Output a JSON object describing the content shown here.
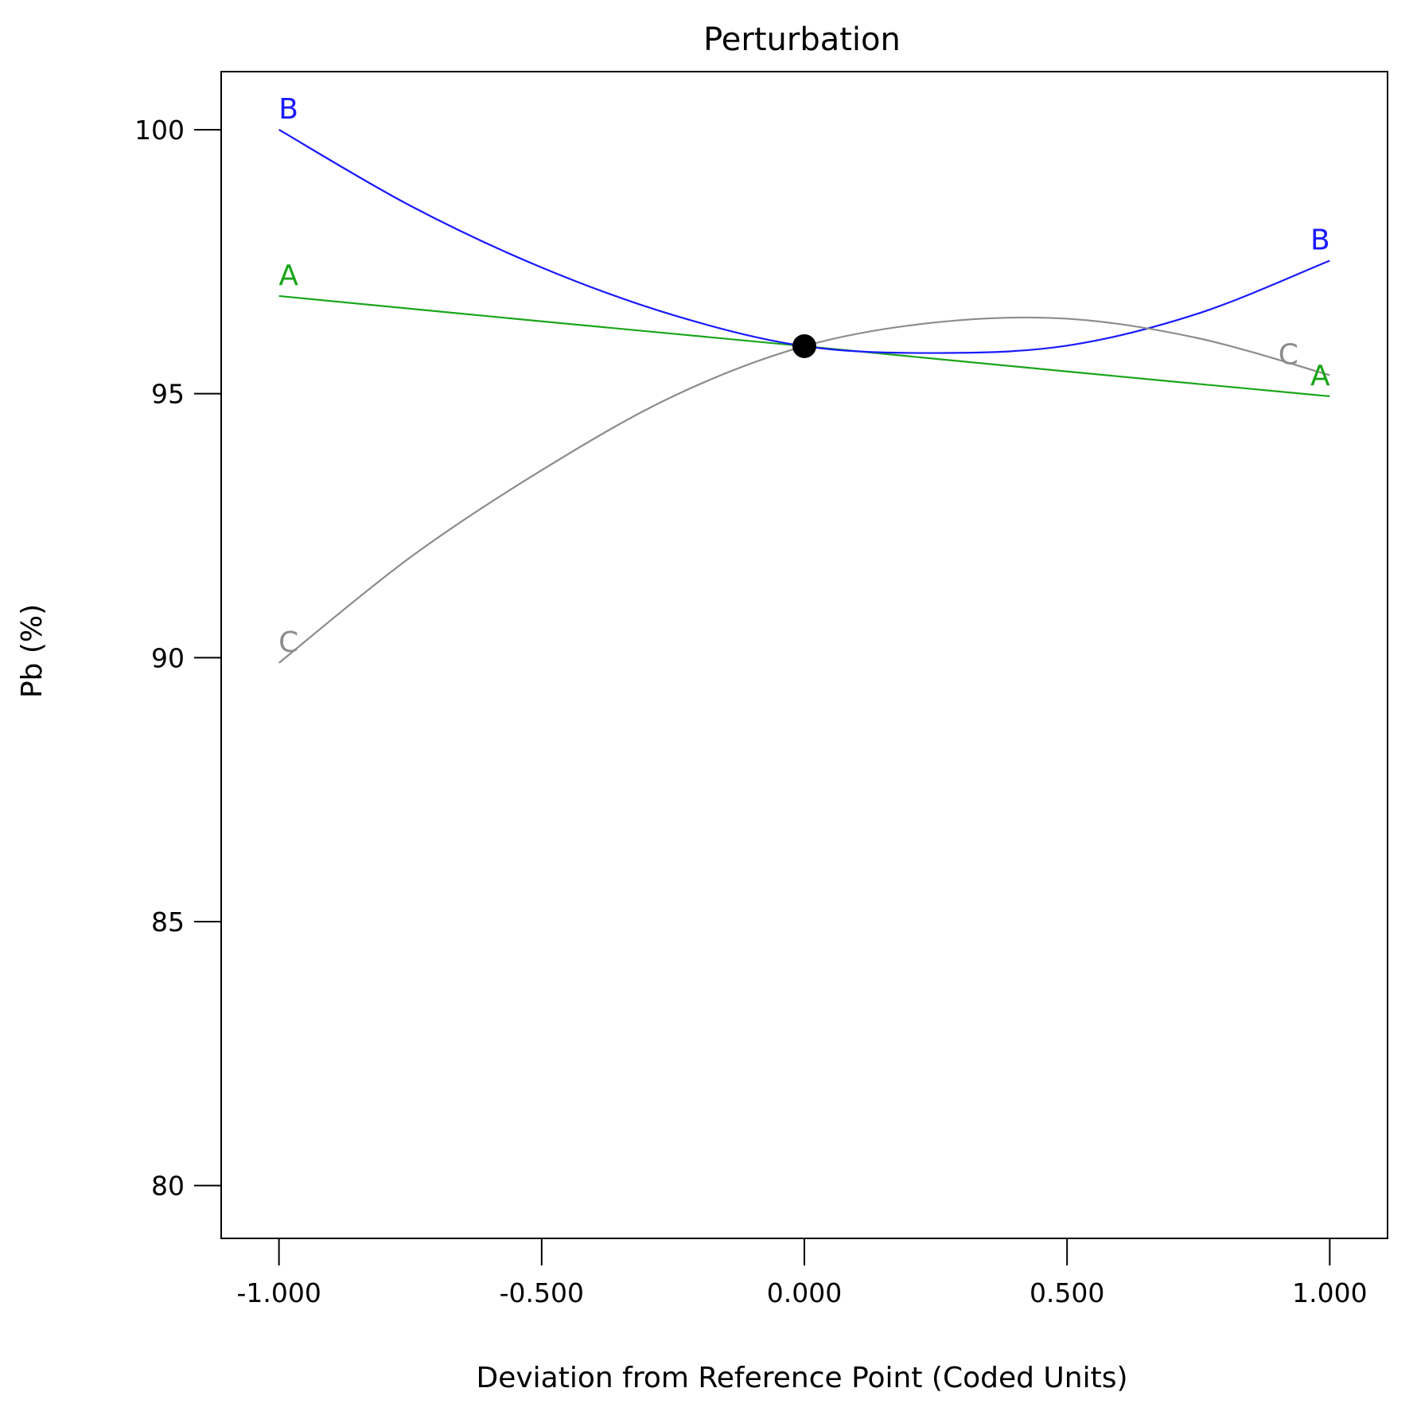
{
  "chart_data": {
    "type": "line",
    "title": "Perturbation",
    "xlabel": "Deviation from Reference Point (Coded Units)",
    "ylabel": "Pb (%)",
    "xlim": [
      -1.11,
      1.11
    ],
    "ylim": [
      79.0,
      101.1
    ],
    "x_ticks": [
      -1.0,
      -0.5,
      0.0,
      0.5,
      1.0
    ],
    "x_tick_labels": [
      "-1.000",
      "-0.500",
      "0.000",
      "0.500",
      "1.000"
    ],
    "y_ticks": [
      80,
      85,
      90,
      95,
      100
    ],
    "y_tick_labels": [
      "80",
      "85",
      "90",
      "95",
      "100"
    ],
    "grid": false,
    "reference_point": {
      "x": 0.0,
      "y": 95.9
    },
    "series": [
      {
        "name": "A",
        "color": "#1aa51a",
        "x": [
          -1.0,
          -0.5,
          0.0,
          0.5,
          1.0
        ],
        "y": [
          96.85,
          96.37,
          95.9,
          95.42,
          94.95
        ]
      },
      {
        "name": "B",
        "color": "#1a1aff",
        "x": [
          -1.0,
          -0.75,
          -0.5,
          -0.25,
          0.0,
          0.25,
          0.5,
          0.75,
          1.0
        ],
        "y": [
          100.0,
          98.56,
          97.39,
          96.49,
          95.9,
          95.77,
          95.91,
          96.52,
          97.52
        ]
      },
      {
        "name": "C",
        "color": "#8c8c8c",
        "x": [
          -1.0,
          -0.75,
          -0.5,
          -0.25,
          0.0,
          0.25,
          0.5,
          0.75,
          1.0
        ],
        "y": [
          89.9,
          91.9,
          93.55,
          94.95,
          95.9,
          96.35,
          96.42,
          96.05,
          95.35
        ]
      }
    ]
  }
}
